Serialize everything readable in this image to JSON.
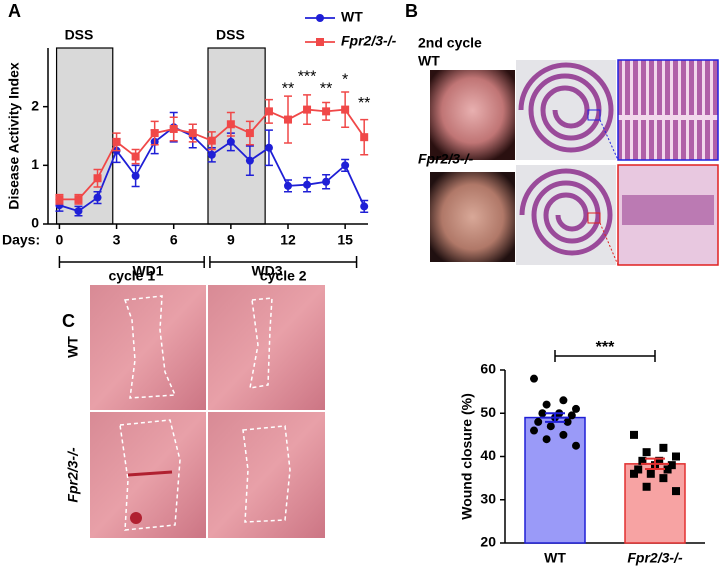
{
  "panels": {
    "a": "A",
    "b": "B",
    "c": "C"
  },
  "panel_b": {
    "cycle_label": "2nd cycle",
    "rows": [
      "WT",
      "Fpr2/3-/-"
    ]
  },
  "panel_c_images": {
    "columns": [
      "WD1",
      "WD3"
    ],
    "rows": [
      "WT",
      "Fpr2/3-/-"
    ]
  },
  "chart_data": [
    {
      "type": "line",
      "y_label": "Disease Activity Index",
      "x_label": "Days:",
      "x": [
        0,
        1,
        2,
        3,
        4,
        5,
        6,
        7,
        8,
        9,
        10,
        11,
        12,
        13,
        14,
        15,
        16
      ],
      "series": [
        {
          "name": "WT",
          "color": "#1f1fd6",
          "marker": "circle",
          "values": [
            0.32,
            0.22,
            0.45,
            1.25,
            0.82,
            1.4,
            1.65,
            1.5,
            1.18,
            1.4,
            1.08,
            1.3,
            0.65,
            0.67,
            0.72,
            1.0,
            0.3
          ],
          "errors": [
            0.1,
            0.08,
            0.1,
            0.2,
            0.18,
            0.2,
            0.25,
            0.2,
            0.12,
            0.15,
            0.25,
            0.3,
            0.1,
            0.12,
            0.12,
            0.1,
            0.1
          ]
        },
        {
          "name": "Fpr2/3-/-",
          "color": "#f04848",
          "marker": "square",
          "values": [
            0.42,
            0.42,
            0.78,
            1.4,
            1.15,
            1.55,
            1.62,
            1.55,
            1.42,
            1.7,
            1.55,
            1.92,
            1.78,
            1.95,
            1.92,
            1.95,
            1.48
          ],
          "errors": [
            0.08,
            0.08,
            0.15,
            0.15,
            0.12,
            0.2,
            0.2,
            0.15,
            0.15,
            0.2,
            0.2,
            0.2,
            0.4,
            0.25,
            0.15,
            0.3,
            0.3
          ]
        }
      ],
      "xlim": [
        -0.6,
        16.2
      ],
      "xticks": [
        0,
        3,
        6,
        9,
        12,
        15
      ],
      "ylim": [
        0,
        3
      ],
      "yticks": [
        0,
        1,
        2
      ],
      "shaded": [
        {
          "label": "DSS",
          "range": [
            -0.15,
            2.8
          ]
        },
        {
          "label": "DSS",
          "range": [
            7.8,
            10.8
          ]
        }
      ],
      "cycles": [
        {
          "label": "cycle 1",
          "range": [
            0,
            7.6
          ]
        },
        {
          "label": "cycle 2",
          "range": [
            7.9,
            15.6
          ]
        }
      ],
      "annotations": [
        {
          "text": "**",
          "x": 12,
          "y": 2.3
        },
        {
          "text": "***",
          "x": 13,
          "y": 2.5
        },
        {
          "text": "**",
          "x": 14,
          "y": 2.3
        },
        {
          "text": "*",
          "x": 15,
          "y": 2.45
        },
        {
          "text": "**",
          "x": 16,
          "y": 2.05
        }
      ],
      "legend": "top-right"
    },
    {
      "type": "bar",
      "y_label": "Wound closure (%)",
      "categories": [
        "WT",
        "Fpr2/3-/-"
      ],
      "values": [
        49,
        38.3
      ],
      "errors": [
        1.0,
        1.2
      ],
      "colors": [
        "#9a9af8",
        "#f7a3a3"
      ],
      "edge_colors": [
        "#1f1fd6",
        "#e23030"
      ],
      "points": [
        [
          58,
          53,
          52,
          51,
          50,
          50,
          49.5,
          49,
          48,
          48,
          47,
          46,
          45,
          44,
          42.5
        ],
        [
          45,
          42,
          41,
          40,
          39,
          39,
          38,
          38,
          37,
          37,
          36,
          36,
          35,
          33,
          32
        ]
      ],
      "ylim": [
        20,
        60
      ],
      "yticks": [
        20,
        30,
        40,
        50,
        60
      ],
      "significance": {
        "text": "***",
        "between": [
          0,
          1
        ]
      }
    }
  ]
}
